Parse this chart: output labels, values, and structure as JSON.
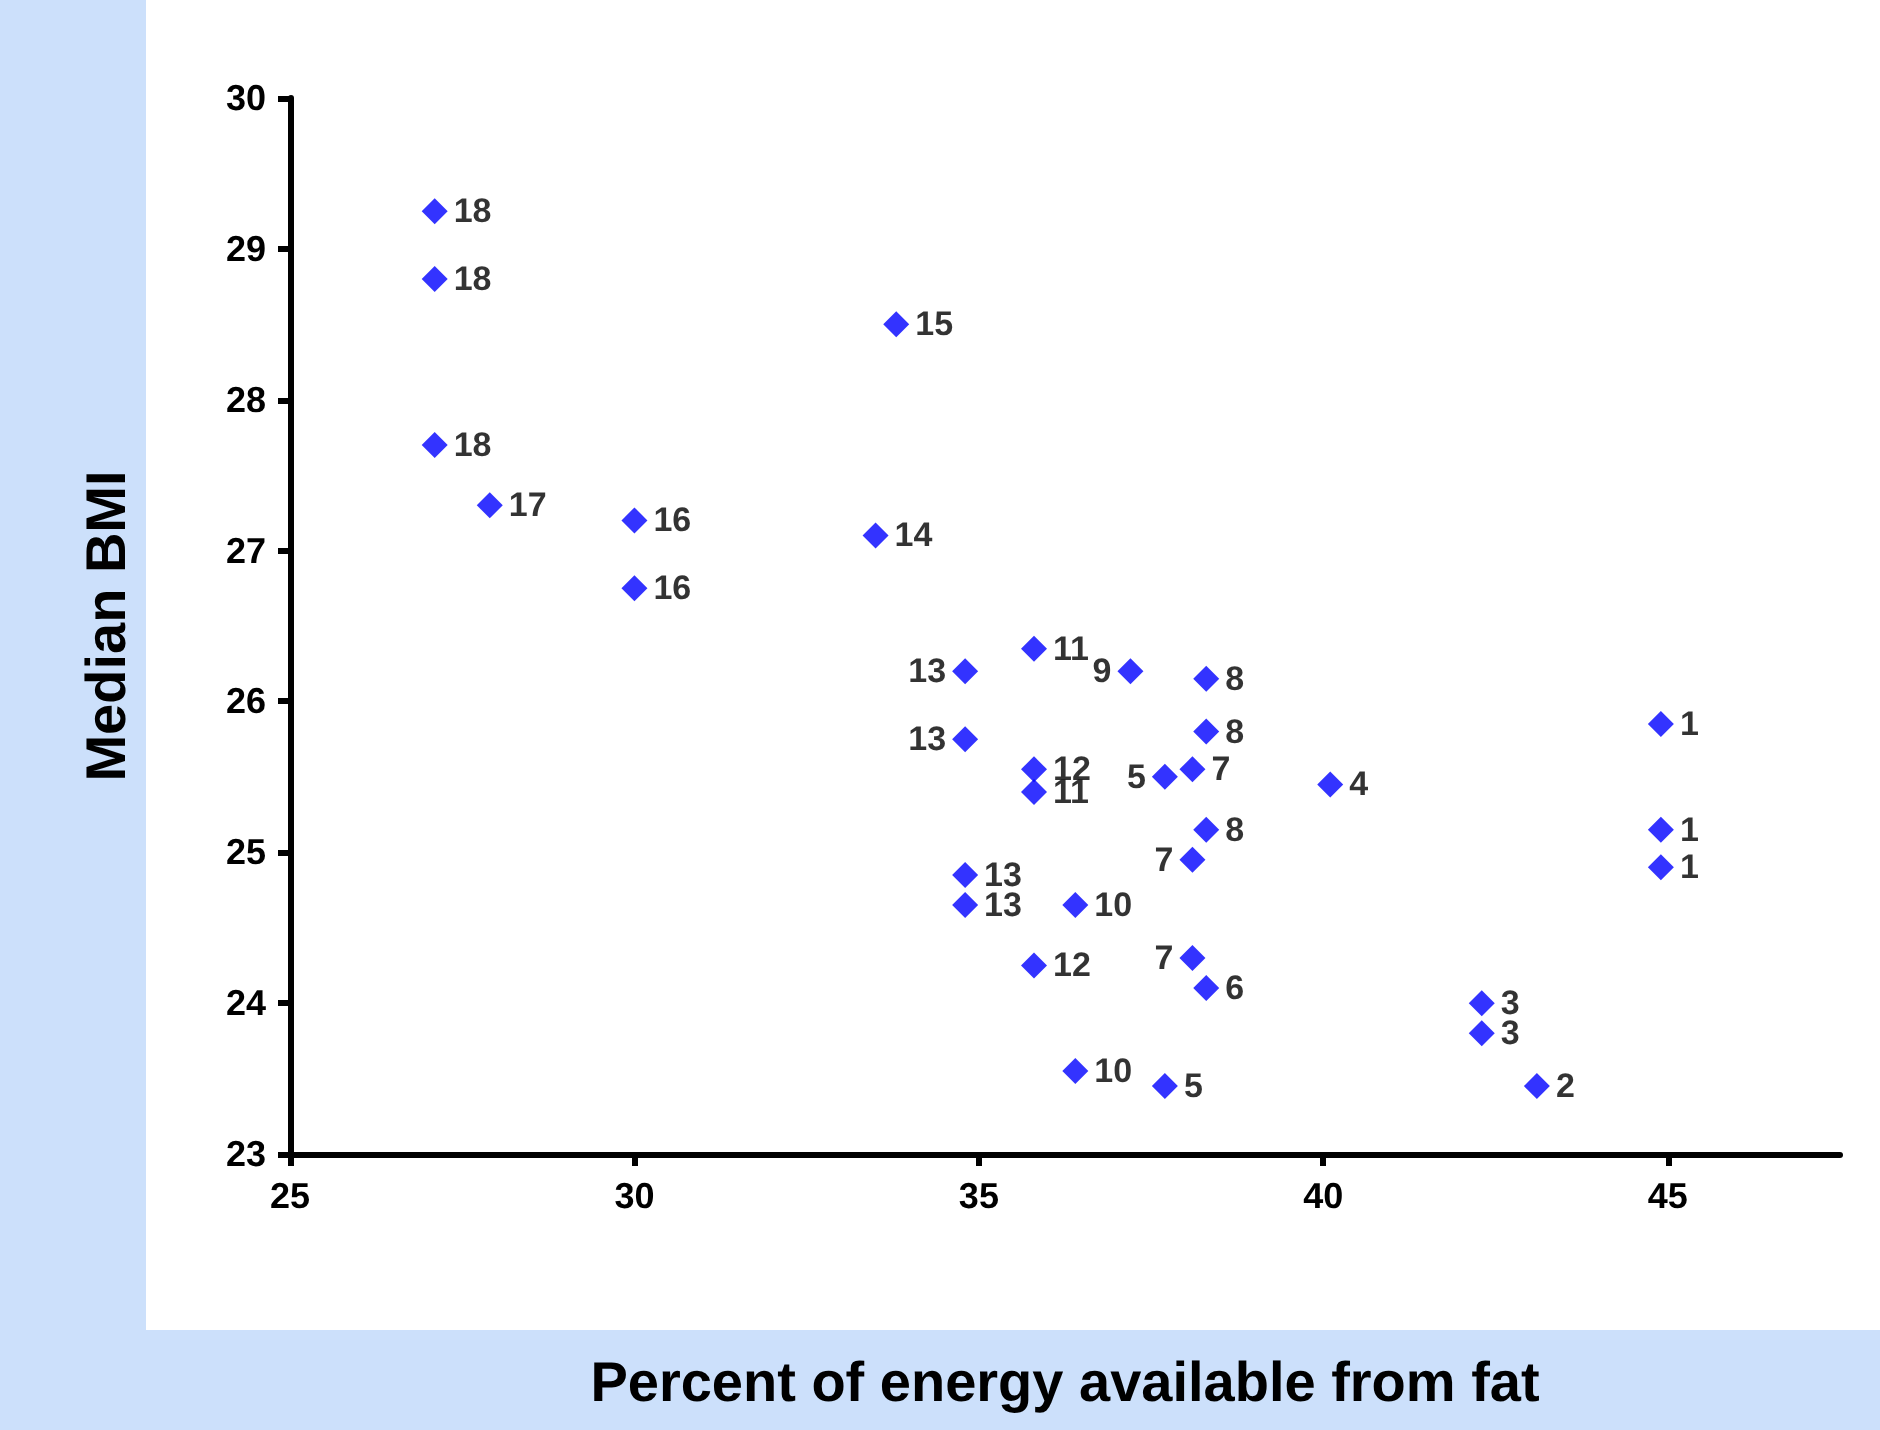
{
  "chart_data": {
    "type": "scatter",
    "xlabel": "Percent of energy available from fat",
    "ylabel": "Median BMI",
    "xlim": [
      25,
      47.5
    ],
    "xticks": [
      25,
      30,
      35,
      40,
      45
    ],
    "ylim": [
      23,
      30
    ],
    "yticks": [
      23,
      24,
      25,
      26,
      27,
      28,
      29,
      30
    ],
    "grid": false,
    "marker": "diamond",
    "series": [
      {
        "color": "#0000ff",
        "x": [
          27.1,
          27.1,
          27.1,
          27.9,
          30.0,
          30.0,
          33.5,
          33.8,
          34.8,
          34.8,
          34.8,
          34.8,
          35.8,
          35.8,
          35.8,
          35.8,
          36.4,
          36.4,
          37.2,
          37.7,
          37.7,
          38.1,
          38.3,
          38.3,
          38.3,
          38.1,
          38.1,
          38.3,
          40.1,
          42.3,
          42.3,
          43.1,
          44.9,
          44.9,
          44.9
        ],
        "values": [
          29.25,
          28.8,
          27.7,
          27.3,
          27.2,
          26.75,
          27.1,
          28.5,
          26.2,
          25.75,
          24.85,
          24.65,
          26.35,
          25.55,
          25.4,
          24.25,
          24.65,
          23.55,
          26.2,
          25.5,
          23.45,
          25.55,
          26.15,
          25.8,
          25.15,
          24.95,
          24.3,
          24.1,
          25.45,
          24.0,
          23.8,
          23.45,
          25.85,
          25.15,
          24.9
        ]
      }
    ],
    "annotations": [
      {
        "text": "18",
        "x": 27.1,
        "y": 29.25
      },
      {
        "text": "18",
        "x": 27.1,
        "y": 28.8
      },
      {
        "text": "18",
        "x": 27.1,
        "y": 27.7
      },
      {
        "text": "17",
        "x": 27.9,
        "y": 27.3
      },
      {
        "text": "16",
        "x": 30.0,
        "y": 27.2
      },
      {
        "text": "16",
        "x": 30.0,
        "y": 26.75
      },
      {
        "text": "14",
        "x": 33.5,
        "y": 27.1
      },
      {
        "text": "15",
        "x": 33.8,
        "y": 28.5
      },
      {
        "text": "13",
        "x": 34.8,
        "y": 26.2
      },
      {
        "text": "13",
        "x": 34.8,
        "y": 25.75
      },
      {
        "text": "13",
        "x": 34.8,
        "y": 24.85
      },
      {
        "text": "13",
        "x": 34.8,
        "y": 24.65
      },
      {
        "text": "11",
        "x": 35.8,
        "y": 26.35
      },
      {
        "text": "12",
        "x": 35.8,
        "y": 25.55
      },
      {
        "text": "11",
        "x": 35.8,
        "y": 25.4
      },
      {
        "text": "12",
        "x": 35.8,
        "y": 24.25
      },
      {
        "text": "10",
        "x": 36.4,
        "y": 24.65
      },
      {
        "text": "10",
        "x": 36.4,
        "y": 23.55
      },
      {
        "text": "9",
        "x": 37.2,
        "y": 26.2
      },
      {
        "text": "5",
        "x": 37.7,
        "y": 25.5
      },
      {
        "text": "5",
        "x": 37.7,
        "y": 23.45
      },
      {
        "text": "7",
        "x": 38.1,
        "y": 25.55
      },
      {
        "text": "8",
        "x": 38.3,
        "y": 26.15
      },
      {
        "text": "8",
        "x": 38.3,
        "y": 25.8
      },
      {
        "text": "8",
        "x": 38.3,
        "y": 25.15
      },
      {
        "text": "7",
        "x": 38.1,
        "y": 24.95
      },
      {
        "text": "7",
        "x": 38.1,
        "y": 24.3
      },
      {
        "text": "6",
        "x": 38.3,
        "y": 24.1
      },
      {
        "text": "4",
        "x": 40.1,
        "y": 25.45
      },
      {
        "text": "3",
        "x": 42.3,
        "y": 24.0
      },
      {
        "text": "3",
        "x": 42.3,
        "y": 23.8
      },
      {
        "text": "2",
        "x": 43.1,
        "y": 23.45
      },
      {
        "text": "1",
        "x": 44.9,
        "y": 25.85
      },
      {
        "text": "1",
        "x": 44.9,
        "y": 25.15
      },
      {
        "text": "1",
        "x": 44.9,
        "y": 24.9
      }
    ]
  }
}
